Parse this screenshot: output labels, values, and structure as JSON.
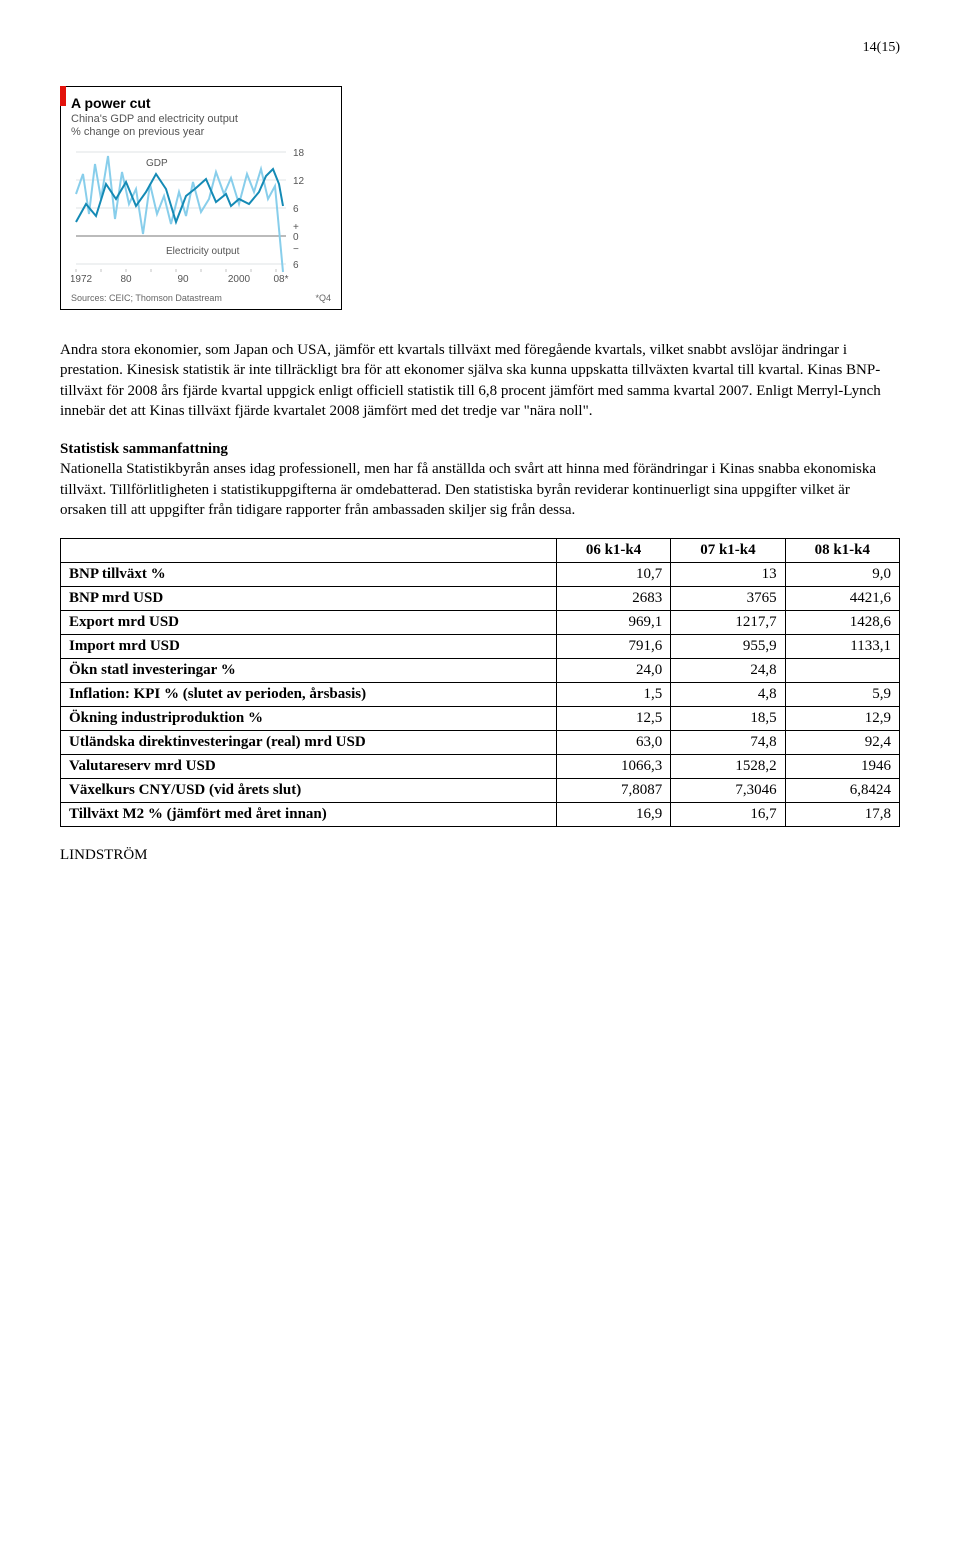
{
  "page_number": "14(15)",
  "chart": {
    "type": "line",
    "title": "A power cut",
    "subtitle1": "China's GDP and electricity output",
    "subtitle2": "% change on previous year",
    "series": [
      {
        "name": "GDP",
        "color": "#148ab5"
      },
      {
        "name": "Electricity output",
        "color": "#88ceeb"
      }
    ],
    "x_ticks": [
      "1972",
      "80",
      "90",
      "2000",
      "08*"
    ],
    "y_ticks": [
      "18",
      "12",
      "6",
      "+",
      "0",
      "−",
      "6"
    ],
    "y_range": [
      -6,
      18
    ],
    "source_left": "Sources: CEIC; Thomson Datastream",
    "source_right": "*Q4",
    "grid_color": "#bfc8cd",
    "label_fontsize": 10,
    "background_color": "#ffffff"
  },
  "para1": "Andra stora ekonomier, som Japan och USA, jämför ett kvartals tillväxt med föregående kvartals, vilket snabbt avslöjar ändringar i prestation. Kinesisk statistik är inte tillräckligt bra för att ekonomer själva ska kunna uppskatta tillväxten kvartal till kvartal. Kinas BNP-tillväxt för 2008 års fjärde kvartal uppgick enligt officiell statistik till 6,8 procent jämfört med samma kvartal 2007. Enligt Merryl-Lynch innebär det att Kinas tillväxt fjärde kvartalet 2008 jämfört med det tredje var \"nära noll\".",
  "summary_heading": "Statistisk sammanfattning",
  "para2": "Nationella Statistikbyrån anses idag professionell, men har få anställda och svårt att hinna med förändringar i Kinas snabba ekonomiska tillväxt. Tillförlitligheten i statistikuppgifterna är omdebatterad. Den statistiska byrån reviderar kontinuerligt sina uppgifter vilket är orsaken till att uppgifter från tidigare rapporter från ambassaden skiljer sig från dessa.",
  "table": {
    "headers": [
      "",
      "06 k1-k4",
      "07 k1-k4",
      "08 k1-k4"
    ],
    "rows": [
      [
        "BNP tillväxt %",
        "10,7",
        "13",
        "9,0"
      ],
      [
        "BNP mrd USD",
        "2683",
        "3765",
        "4421,6"
      ],
      [
        "Export mrd USD",
        "969,1",
        "1217,7",
        "1428,6"
      ],
      [
        "Import mrd USD",
        "791,6",
        "955,9",
        "1133,1"
      ],
      [
        "Ökn statl investeringar %",
        "24,0",
        "24,8",
        ""
      ],
      [
        "Inflation: KPI % (slutet av perioden, årsbasis)",
        "1,5",
        "4,8",
        "5,9"
      ],
      [
        "Ökning industriproduktion %",
        "12,5",
        "18,5",
        "12,9"
      ],
      [
        "Utländska direktinvesteringar (real) mrd USD",
        "63,0",
        "74,8",
        "92,4"
      ],
      [
        "Valutareserv mrd USD",
        "1066,3",
        "1528,2",
        "1946"
      ],
      [
        "Växelkurs CNY/USD (vid årets slut)",
        "7,8087",
        "7,3046",
        "6,8424"
      ],
      [
        "Tillväxt M2 % (jämfört med året innan)",
        "16,9",
        "16,7",
        "17,8"
      ]
    ]
  },
  "footer": "LINDSTRÖM"
}
